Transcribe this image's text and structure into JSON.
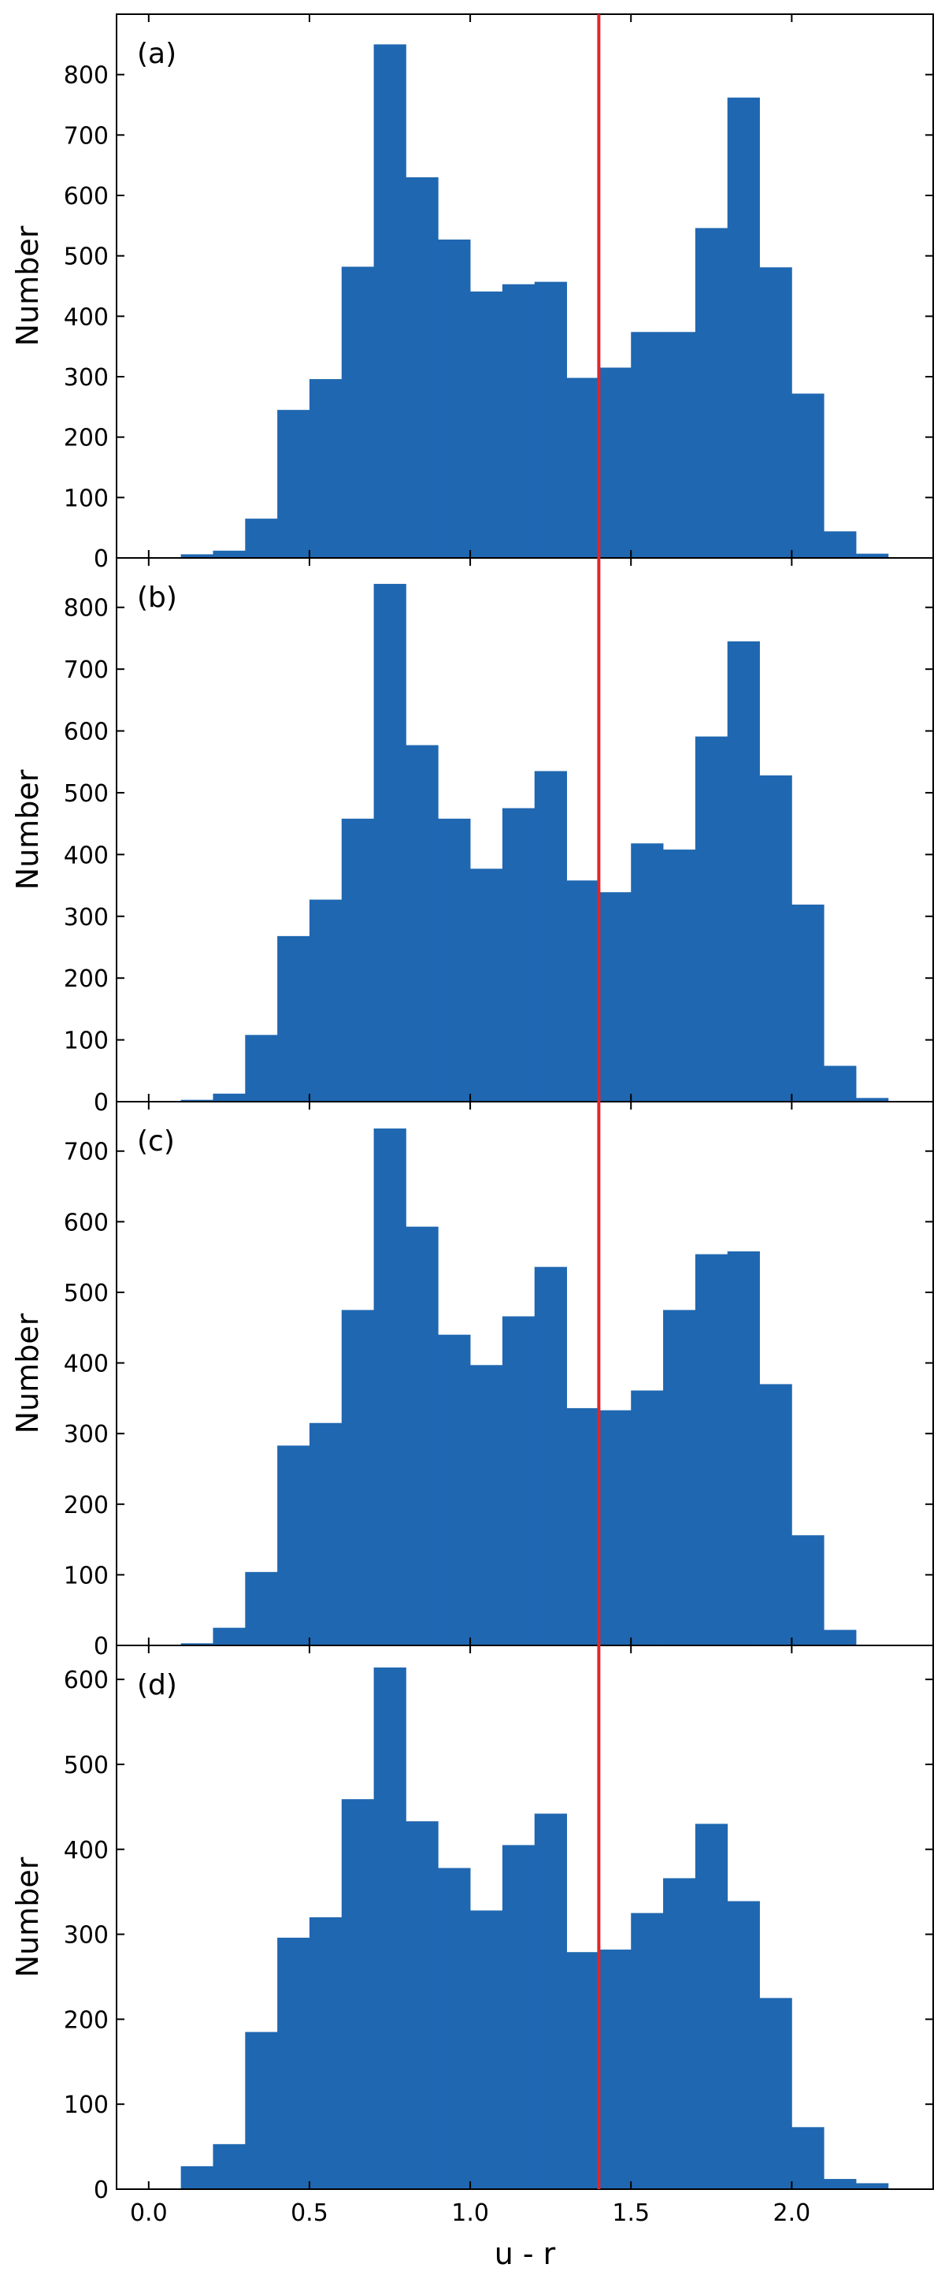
{
  "figure": {
    "bar_color": "#1f67b1",
    "ref_line_color": "#e0262b",
    "ref_line_x": 1.4,
    "shared_xlabel": "u - r",
    "x_ticks": [
      "0.0",
      "0.5",
      "1.0",
      "1.5",
      "2.0"
    ],
    "x_tick_values": [
      0.0,
      0.5,
      1.0,
      1.5,
      2.0
    ]
  },
  "chart_data": [
    {
      "type": "bar",
      "panel_label": "(a)",
      "ylabel": "Number",
      "xlabel": "u - r",
      "bin_width": 0.1,
      "bin_starts": [
        0.1,
        0.2,
        0.3,
        0.4,
        0.5,
        0.6,
        0.7,
        0.8,
        0.9,
        1.0,
        1.1,
        1.2,
        1.3,
        1.4,
        1.5,
        1.6,
        1.7,
        1.8,
        1.9,
        2.0,
        2.1,
        2.2
      ],
      "values": [
        6,
        12,
        65,
        245,
        296,
        482,
        850,
        630,
        527,
        441,
        453,
        457,
        298,
        315,
        374,
        374,
        546,
        762,
        481,
        272,
        44,
        7
      ],
      "xlim": [
        -0.1,
        2.44
      ],
      "ylim": [
        0,
        900
      ],
      "yticks": [
        0,
        100,
        200,
        300,
        400,
        500,
        600,
        700,
        800
      ],
      "show_xticklabels": false
    },
    {
      "type": "bar",
      "panel_label": "(b)",
      "ylabel": "Number",
      "xlabel": "u - r",
      "bin_width": 0.1,
      "bin_starts": [
        0.1,
        0.2,
        0.3,
        0.4,
        0.5,
        0.6,
        0.7,
        0.8,
        0.9,
        1.0,
        1.1,
        1.2,
        1.3,
        1.4,
        1.5,
        1.6,
        1.7,
        1.8,
        1.9,
        2.0,
        2.1,
        2.2
      ],
      "values": [
        3,
        13,
        108,
        268,
        327,
        458,
        838,
        577,
        458,
        377,
        475,
        535,
        358,
        339,
        418,
        408,
        591,
        745,
        528,
        319,
        58,
        6
      ],
      "xlim": [
        -0.1,
        2.44
      ],
      "ylim": [
        0,
        880
      ],
      "yticks": [
        0,
        100,
        200,
        300,
        400,
        500,
        600,
        700,
        800
      ],
      "show_xticklabels": false
    },
    {
      "type": "bar",
      "panel_label": "(c)",
      "ylabel": "Number",
      "xlabel": "u - r",
      "bin_width": 0.1,
      "bin_starts": [
        0.1,
        0.2,
        0.3,
        0.4,
        0.5,
        0.6,
        0.7,
        0.8,
        0.9,
        1.0,
        1.1,
        1.2,
        1.3,
        1.4,
        1.5,
        1.6,
        1.7,
        1.8,
        1.9,
        2.0,
        2.1
      ],
      "values": [
        3,
        25,
        104,
        283,
        315,
        475,
        732,
        593,
        440,
        397,
        466,
        536,
        336,
        333,
        361,
        475,
        554,
        558,
        370,
        156,
        22
      ],
      "xlim": [
        -0.1,
        2.44
      ],
      "ylim": [
        0,
        770
      ],
      "yticks": [
        0,
        100,
        200,
        300,
        400,
        500,
        600,
        700
      ],
      "show_xticklabels": false
    },
    {
      "type": "bar",
      "panel_label": "(d)",
      "ylabel": "Number",
      "xlabel": "u - r",
      "bin_width": 0.1,
      "bin_starts": [
        0.1,
        0.2,
        0.3,
        0.4,
        0.5,
        0.6,
        0.7,
        0.8,
        0.9,
        1.0,
        1.1,
        1.2,
        1.3,
        1.4,
        1.5,
        1.6,
        1.7,
        1.8,
        1.9,
        2.0,
        2.1,
        2.2
      ],
      "values": [
        27,
        53,
        185,
        296,
        320,
        459,
        614,
        433,
        378,
        328,
        405,
        442,
        279,
        282,
        325,
        366,
        430,
        339,
        225,
        73,
        12,
        7
      ],
      "xlim": [
        -0.1,
        2.44
      ],
      "ylim": [
        0,
        640
      ],
      "yticks": [
        0,
        100,
        200,
        300,
        400,
        500,
        600
      ],
      "show_xticklabels": true
    }
  ]
}
